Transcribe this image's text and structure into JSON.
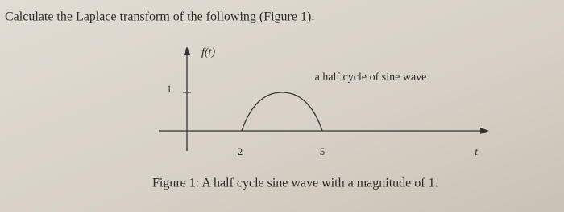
{
  "question": "Calculate the Laplace transform of the following (Figure 1).",
  "figure": {
    "y_label": "f(t)",
    "y_tick": "1",
    "x_ticks": [
      "2",
      "5"
    ],
    "x_label": "t",
    "annotation": "a half cycle of sine wave",
    "caption": "Figure 1: A half cycle sine wave with a magnitude of 1."
  }
}
